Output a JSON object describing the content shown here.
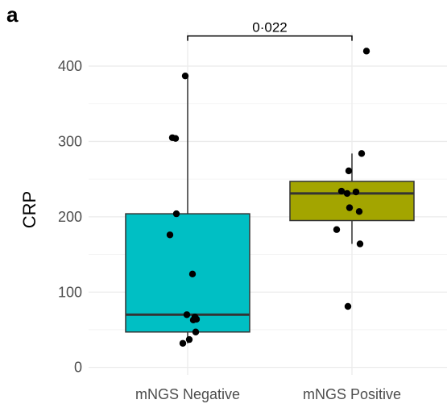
{
  "panel_label": "a",
  "chart_data": {
    "type": "box",
    "ylabel": "CRP",
    "xlabel": "",
    "categories": [
      "mNGS Negative",
      "mNGS Positive"
    ],
    "ylim": [
      -10,
      445
    ],
    "yticks": [
      0,
      100,
      200,
      300,
      400
    ],
    "ytick_labels": [
      "0",
      "100",
      "200",
      "300",
      "400"
    ],
    "grid": true,
    "legend": "none",
    "colors": {
      "mNGS Negative": "#00BFC4",
      "mNGS Positive": "#A3A500"
    },
    "boxes": [
      {
        "category": "mNGS Negative",
        "q1": 47,
        "median": 70,
        "q3": 204,
        "whisker_low": 32,
        "whisker_high": 387
      },
      {
        "category": "mNGS Positive",
        "q1": 195,
        "median": 231,
        "q3": 247,
        "whisker_low": 164,
        "whisker_high": 284
      }
    ],
    "points": [
      {
        "category": "mNGS Negative",
        "values": [
          387,
          305,
          304,
          204,
          176,
          124,
          70,
          67,
          64,
          63,
          47,
          37,
          32
        ]
      },
      {
        "category": "mNGS Positive",
        "values": [
          420,
          284,
          261,
          234,
          233,
          231,
          212,
          207,
          183,
          164,
          81
        ]
      }
    ],
    "annotation": {
      "text": "0·022",
      "from": "mNGS Negative",
      "to": "mNGS Positive",
      "y": 440
    }
  }
}
